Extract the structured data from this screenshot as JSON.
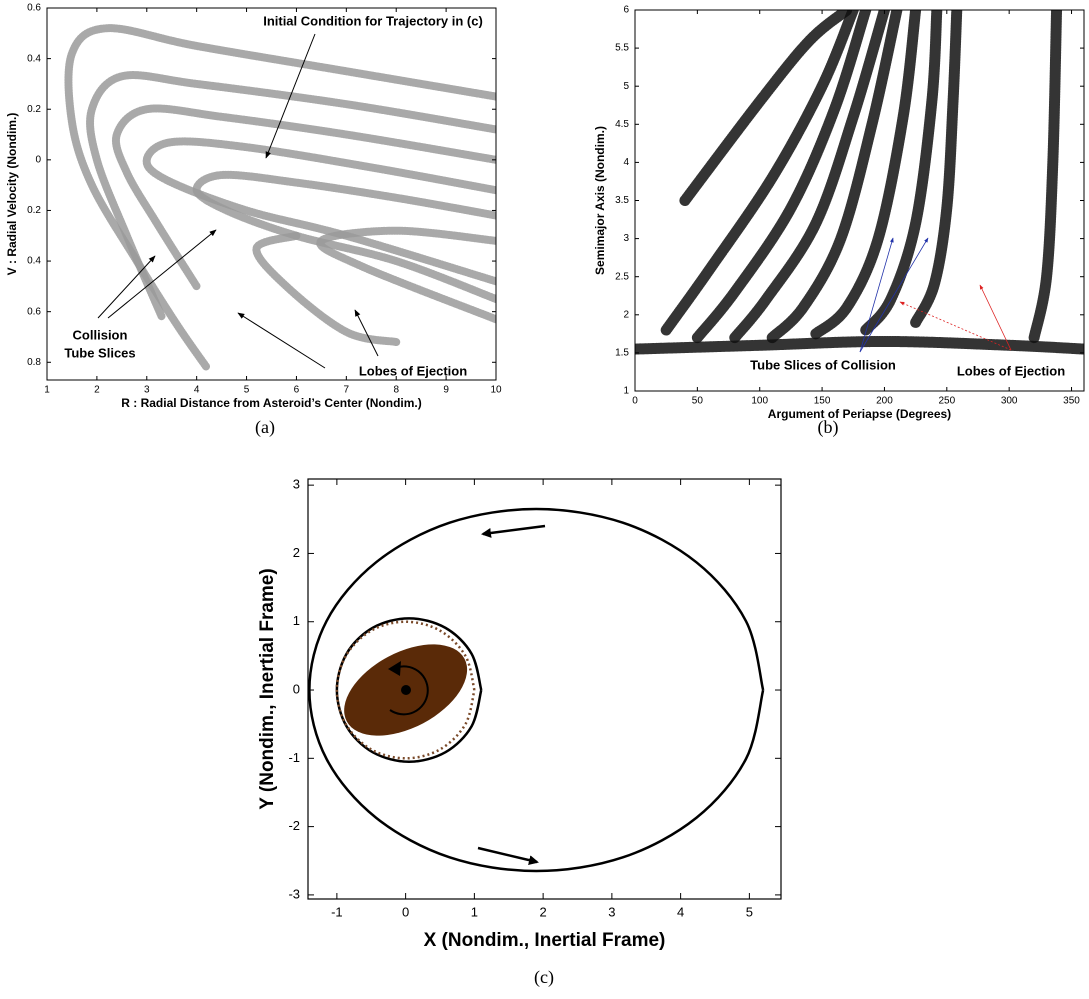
{
  "chart_data": [
    {
      "type": "scatter",
      "caption": "(a)",
      "xlabel": "R : Radial Distance from Asteroid’s Center (Nondim.)",
      "ylabel": "V : Radial Velocity (Nondim.)",
      "xlim": [
        1,
        10
      ],
      "ylim": [
        -0.87,
        0.6
      ],
      "xticks": [
        1,
        2,
        3,
        4,
        5,
        6,
        7,
        8,
        9,
        10
      ],
      "yticks": [
        0.6,
        0.4,
        0.2,
        0,
        {
          "value": -0.2,
          "label": "0.2"
        },
        {
          "value": -0.4,
          "label": "0.4"
        },
        {
          "value": -0.6,
          "label": "0.6"
        },
        {
          "value": -0.8,
          "label": "0.8"
        }
      ],
      "annotations": [
        "Initial Condition for Trajectory in (c)",
        "Collision",
        "Tube Slices",
        "Lobes of Ejection"
      ],
      "series": [
        {
          "color": "#9a9a9a",
          "x": [
            10,
            7,
            4,
            2.2,
            1.5,
            1.5,
            1.9,
            2.8,
            3.6,
            4.2
          ],
          "y": [
            0.25,
            0.35,
            0.45,
            0.52,
            0.42,
            0.15,
            -0.1,
            -0.4,
            -0.65,
            -0.82
          ]
        },
        {
          "color": "#9a9a9a",
          "x": [
            10,
            7,
            4,
            2.5,
            1.9,
            2.0,
            2.6,
            3.3
          ],
          "y": [
            0.12,
            0.22,
            0.3,
            0.33,
            0.2,
            0.0,
            -0.3,
            -0.62
          ]
        },
        {
          "color": "#9a9a9a",
          "x": [
            10,
            7,
            4.5,
            3,
            2.4,
            2.6,
            3.2,
            4.0
          ],
          "y": [
            0.0,
            0.1,
            0.17,
            0.2,
            0.1,
            -0.05,
            -0.25,
            -0.5
          ]
        },
        {
          "color": "#9a9a9a",
          "x": [
            10,
            7.5,
            5,
            3.5,
            3.0,
            3.4,
            5,
            7,
            10
          ],
          "y": [
            -0.12,
            -0.03,
            0.05,
            0.07,
            0.0,
            -0.08,
            -0.2,
            -0.3,
            -0.48
          ]
        },
        {
          "color": "#9a9a9a",
          "x": [
            10,
            8,
            6,
            4.5,
            4.0,
            4.6,
            6,
            8,
            10
          ],
          "y": [
            -0.22,
            -0.15,
            -0.09,
            -0.06,
            -0.12,
            -0.2,
            -0.3,
            -0.4,
            -0.55
          ]
        },
        {
          "color": "#9a9a9a",
          "x": [
            10,
            8,
            6.5,
            7.3,
            10
          ],
          "y": [
            -0.32,
            -0.28,
            -0.32,
            -0.42,
            -0.63
          ]
        },
        {
          "color": "#9a9a9a",
          "x": [
            6,
            5.2,
            5.8,
            7,
            8
          ],
          "y": [
            -0.3,
            -0.35,
            -0.5,
            -0.68,
            -0.72
          ]
        }
      ]
    },
    {
      "type": "scatter",
      "caption": "(b)",
      "xlabel": "Argument of Periapse (Degrees)",
      "ylabel": "Semimajor Axis (Nondim.)",
      "xlim": [
        0,
        360
      ],
      "ylim": [
        1,
        6
      ],
      "xticks": [
        0,
        50,
        100,
        150,
        200,
        250,
        300,
        350
      ],
      "yticks": [
        1,
        1.5,
        2,
        2.5,
        3,
        3.5,
        4,
        4.5,
        5,
        5.5,
        6
      ],
      "annotations": [
        "Tube Slices of Collision",
        "Lobes of Ejection"
      ],
      "series": [
        {
          "color": "#111111",
          "x": [
            0,
            100,
            200,
            300,
            360
          ],
          "y": [
            1.55,
            1.6,
            1.65,
            1.6,
            1.55
          ]
        },
        {
          "color": "#111111",
          "x": [
            40,
            100,
            140,
            170
          ],
          "y": [
            3.5,
            4.8,
            5.6,
            6
          ]
        },
        {
          "color": "#111111",
          "x": [
            25,
            60,
            110,
            150,
            175
          ],
          "y": [
            1.8,
            2.6,
            3.8,
            5,
            6
          ]
        },
        {
          "color": "#111111",
          "x": [
            50,
            80,
            125,
            160,
            185
          ],
          "y": [
            1.7,
            2.3,
            3.4,
            4.7,
            6
          ]
        },
        {
          "color": "#111111",
          "x": [
            80,
            105,
            145,
            175,
            200
          ],
          "y": [
            1.7,
            2.2,
            3.2,
            4.6,
            6
          ]
        },
        {
          "color": "#111111",
          "x": [
            110,
            135,
            165,
            190,
            210
          ],
          "y": [
            1.7,
            2.1,
            3.0,
            4.5,
            6
          ]
        },
        {
          "color": "#111111",
          "x": [
            145,
            170,
            195,
            215,
            225
          ],
          "y": [
            1.75,
            2.1,
            3.0,
            4.6,
            6
          ]
        },
        {
          "color": "#111111",
          "x": [
            185,
            205,
            225,
            238,
            242
          ],
          "y": [
            1.8,
            2.2,
            3.2,
            4.8,
            6
          ]
        },
        {
          "color": "#111111",
          "x": [
            225,
            240,
            250,
            255,
            258
          ],
          "y": [
            1.9,
            2.4,
            3.4,
            4.8,
            6
          ]
        },
        {
          "color": "#111111",
          "x": [
            320,
            330,
            335,
            338
          ],
          "y": [
            1.7,
            2.5,
            4,
            6
          ]
        }
      ]
    },
    {
      "type": "line",
      "caption": "(c)",
      "xlabel": "X (Nondim., Inertial Frame)",
      "ylabel": "Y (Nondim., Inertial Frame)",
      "xlim": [
        -1.42,
        5.46
      ],
      "ylim": [
        -3.06,
        3.09
      ],
      "xticks": [
        -1,
        0,
        1,
        2,
        3,
        4,
        5
      ],
      "yticks": [
        -3,
        -2,
        -1,
        0,
        1,
        2,
        3
      ],
      "ellipse": {
        "color": "#5a2a08",
        "cx": 0,
        "cy": 0,
        "rx": 0.97,
        "ry": 0.55,
        "angle": 28
      },
      "series": [
        {
          "color": "#000000",
          "x": [
            5.2,
            4.95,
            4.23,
            3.16,
            1.9,
            0.64,
            -0.43,
            -1.15,
            -1.4,
            -1.15,
            -0.43,
            0.64,
            1.9,
            3.16,
            4.23,
            4.95,
            5.2
          ],
          "y": [
            0,
            1.01,
            1.87,
            2.45,
            2.65,
            2.45,
            1.87,
            1.01,
            0,
            -1.01,
            -1.87,
            -2.45,
            -2.65,
            -2.45,
            -1.87,
            -1.01,
            0
          ]
        },
        {
          "color": "#000000",
          "x": [
            1.1,
            0.96,
            0.58,
            0.05,
            -0.48,
            -0.86,
            -1.0,
            -0.86,
            -0.48,
            0.05,
            0.58,
            0.96,
            1.1
          ],
          "y": [
            0,
            0.53,
            0.91,
            1.05,
            0.91,
            0.53,
            0,
            -0.53,
            -0.91,
            -1.05,
            -0.91,
            -0.53,
            0
          ]
        },
        {
          "color": "#7a4a2a",
          "dash": true,
          "x": [
            1.0,
            0.87,
            0.5,
            0,
            -0.5,
            -0.87,
            -1.0,
            -0.87,
            -0.5,
            0,
            0.5,
            0.87,
            1.0
          ],
          "y": [
            0,
            0.5,
            0.87,
            1.0,
            0.87,
            0.5,
            0,
            -0.5,
            -0.87,
            -1.0,
            -0.87,
            -0.5,
            0
          ]
        }
      ]
    }
  ]
}
